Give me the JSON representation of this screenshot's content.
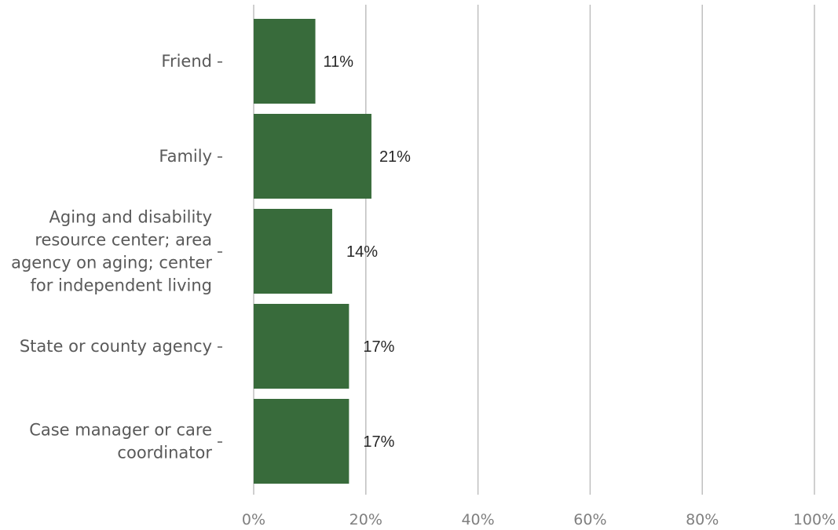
{
  "chart_data": {
    "type": "bar",
    "orientation": "horizontal",
    "categories": [
      [
        "Friend"
      ],
      [
        "Family"
      ],
      [
        "Aging and disability",
        "resource center; area",
        "agency on aging; center",
        "for independent living"
      ],
      [
        "State or county agency"
      ],
      [
        "Case manager or care",
        "coordinator"
      ]
    ],
    "values": [
      11,
      21,
      14,
      17,
      17
    ],
    "value_labels": [
      "11%",
      "21%",
      "14%",
      "17%",
      "17%"
    ],
    "xlim": [
      0,
      100
    ],
    "x_ticks": [
      0,
      20,
      40,
      60,
      80,
      100
    ],
    "x_tick_labels": [
      "0%",
      "20%",
      "40%",
      "60%",
      "80%",
      "100%"
    ],
    "grid": "vertical",
    "bar_color": "#386b3b",
    "grid_color": "#bfbfbf"
  }
}
